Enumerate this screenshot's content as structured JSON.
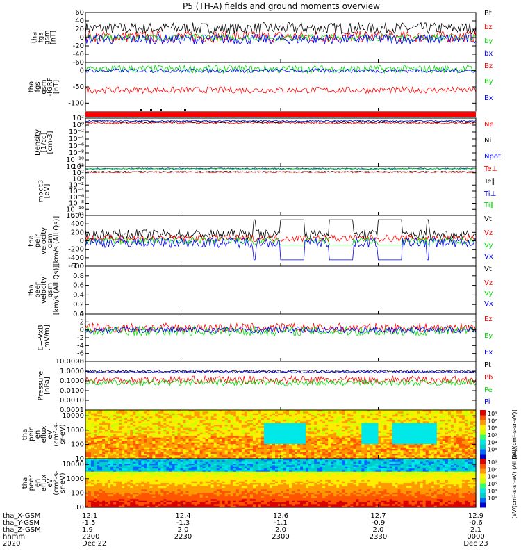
{
  "title": "P5 (TH-A) fields and ground moments overview",
  "colors": {
    "black": "#000000",
    "red": "#ff0000",
    "green": "#00dd00",
    "blue": "#0000ff",
    "spec_low": "#0000cc",
    "spec_mid": "#00e8e8",
    "spec_high": "#ff8800",
    "spec_max": "#cc0000"
  },
  "chart_data": [
    {
      "type": "line",
      "ylabel": [
        "tha",
        "fgs",
        "gsm",
        "[nT]"
      ],
      "ylim": [
        -60,
        60
      ],
      "ticks": [
        "60",
        "40",
        "20",
        "0",
        "-20",
        "-40",
        "-60"
      ],
      "tick_values": [
        60,
        40,
        20,
        0,
        -20,
        -40,
        -60
      ],
      "series": [
        {
          "name": "Bt",
          "color": "#000000",
          "base": 22,
          "amp": 14
        },
        {
          "name": "bz",
          "color": "#ff0000",
          "base": 2,
          "amp": 14
        },
        {
          "name": "by",
          "color": "#00dd00",
          "base": 0,
          "amp": 8
        },
        {
          "name": "bx",
          "color": "#0000ff",
          "base": -4,
          "amp": 12
        }
      ]
    },
    {
      "type": "line",
      "ylabel": [
        "tha",
        "fgs",
        "gsm",
        "-IGRF",
        "[nT]"
      ],
      "ylim": [
        -125,
        25
      ],
      "ticks": [
        "0",
        "-50",
        "-100"
      ],
      "tick_values": [
        0,
        -50,
        -100
      ],
      "series": [
        {
          "name": "Bz",
          "color": "#ff0000",
          "base": -60,
          "amp": 10
        },
        {
          "name": "By",
          "color": "#00dd00",
          "base": 5,
          "amp": 12
        },
        {
          "name": "Bx",
          "color": "#0000ff",
          "base": 0,
          "amp": 6
        }
      ]
    },
    {
      "type": "line",
      "log": true,
      "ylabel": [
        "Density",
        "[1/cc]",
        "[cm-3]"
      ],
      "ylim": [
        -12,
        2
      ],
      "ticks": [
        "10²",
        "10⁰",
        "10⁻²",
        "10⁻⁴",
        "10⁻⁶",
        "10⁻⁸",
        "10⁻¹⁰",
        "10⁻¹²"
      ],
      "tick_values": [
        2,
        0,
        -2,
        -4,
        -6,
        -8,
        -10,
        -12
      ],
      "series": [
        {
          "name": "Ne",
          "color": "#ff0000",
          "base": 0.6,
          "amp": 0.3
        },
        {
          "name": "Ni",
          "color": "#000000",
          "base": 0.9,
          "amp": 0.25
        },
        {
          "name": "Npot",
          "color": "#0000ff",
          "base": 1.2,
          "amp": 0.2
        }
      ]
    },
    {
      "type": "line",
      "log": true,
      "ylabel": [
        "moqt3",
        "[eV]"
      ],
      "ylim": [
        -12,
        4
      ],
      "ticks": [
        "10⁴",
        "10²",
        "10⁰",
        "10⁻²",
        "10⁻⁴",
        "10⁻⁶",
        "10⁻⁸",
        "10⁻¹⁰",
        "10⁻¹²"
      ],
      "tick_values": [
        4,
        2,
        0,
        -2,
        -4,
        -6,
        -8,
        -10,
        -12
      ],
      "series": [
        {
          "name": "Te⊥",
          "color": "#ff0000",
          "base": 2.2,
          "amp": 0.2
        },
        {
          "name": "Te∥",
          "color": "#000000",
          "base": 2.35,
          "amp": 0.15
        },
        {
          "name": "Ti⊥",
          "color": "#0000ff",
          "base": 3.4,
          "amp": 0.2
        },
        {
          "name": "Ti∥",
          "color": "#00dd00",
          "base": 3.3,
          "amp": 0.2
        }
      ]
    },
    {
      "type": "line",
      "ylabel": [
        "tha",
        "peir",
        "velocity",
        "gsm",
        "[km/s (All Qs)]"
      ],
      "ylim": [
        -600,
        600
      ],
      "ticks": [
        "600",
        "400",
        "200",
        "0",
        "-200",
        "-400",
        "-600"
      ],
      "tick_values": [
        600,
        400,
        200,
        0,
        -200,
        -400,
        -600
      ],
      "series": [
        {
          "name": "Vt",
          "color": "#000000",
          "base": 150,
          "amp": 120
        },
        {
          "name": "Vz",
          "color": "#ff0000",
          "base": 60,
          "amp": 80
        },
        {
          "name": "Vy",
          "color": "#00dd00",
          "base": 0,
          "amp": 80
        },
        {
          "name": "Vx",
          "color": "#0000ff",
          "base": -40,
          "amp": 120
        }
      ]
    },
    {
      "type": "line",
      "empty": true,
      "ylabel": [
        "tha",
        "peer",
        "velocity",
        "gsm",
        "[km/s (All Qs)]"
      ],
      "ylim": [
        0,
        1
      ],
      "ticks": [
        "1.0",
        "0.8",
        "0.6",
        "0.4",
        "0.2",
        "0.0"
      ],
      "tick_values": [
        1.0,
        0.8,
        0.6,
        0.4,
        0.2,
        0.0
      ],
      "series": [
        {
          "name": "Vt",
          "color": "#000000"
        },
        {
          "name": "Vz",
          "color": "#ff0000"
        },
        {
          "name": "Vy",
          "color": "#00dd00"
        },
        {
          "name": "Vx",
          "color": "#0000ff"
        }
      ]
    },
    {
      "type": "line",
      "ylabel": [
        "E=-VxB",
        "[mV/m]"
      ],
      "ylim": [
        -8,
        4
      ],
      "ticks": [
        "4",
        "2",
        "0",
        "-2",
        "-4",
        "-6",
        "-8"
      ],
      "tick_values": [
        4,
        2,
        0,
        -2,
        -4,
        -6,
        -8
      ],
      "series": [
        {
          "name": "Ez",
          "color": "#ff0000",
          "base": 0.5,
          "amp": 1.2
        },
        {
          "name": "Ey",
          "color": "#00dd00",
          "base": -0.3,
          "amp": 1.2
        },
        {
          "name": "Ex",
          "color": "#0000ff",
          "base": 0,
          "amp": 0.8
        }
      ]
    },
    {
      "type": "line",
      "log": true,
      "ylabel": [
        "Pressure",
        "[nPa]"
      ],
      "ylim": [
        -4,
        1
      ],
      "ticks": [
        "10.0000",
        "1.0000",
        "0.1000",
        "0.0100",
        "0.0010",
        "0.0001"
      ],
      "tick_values": [
        1,
        0,
        -1,
        -2,
        -3,
        -4
      ],
      "series": [
        {
          "name": "Pt",
          "color": "#000000",
          "base": 0.0,
          "amp": 0.12
        },
        {
          "name": "Pb",
          "color": "#ff0000",
          "base": -0.9,
          "amp": 0.4
        },
        {
          "name": "Pe",
          "color": "#00dd00",
          "base": -1.2,
          "amp": 0.3
        },
        {
          "name": "Pi",
          "color": "#0000ff",
          "base": -0.1,
          "amp": 0.1
        }
      ]
    },
    {
      "type": "heatmap",
      "ylabel": [
        "tha",
        "peir",
        "en",
        "eflux",
        "eV",
        "(cm²-s-",
        "sr-eV)"
      ],
      "ylim": [
        1,
        4.4
      ],
      "ticks": [
        "10000",
        "1000",
        "100",
        "10"
      ],
      "tick_values": [
        4,
        3,
        2,
        1
      ]
    },
    {
      "type": "heatmap",
      "ylabel": [
        "tha",
        "peer",
        "en",
        "eflux",
        "eV",
        "(cm²-s-",
        "sr-eV)"
      ],
      "ylim": [
        1,
        4.4
      ],
      "ticks": [
        "10000",
        "1000",
        "100",
        "10"
      ],
      "tick_values": [
        4,
        3,
        2,
        1
      ]
    }
  ],
  "colorbars": [
    {
      "ticks": [
        "10⁸",
        "10⁷",
        "10⁶",
        "10⁵",
        "10⁴",
        "10³"
      ],
      "label": "[eV/(cm²-s-sr-eV)]"
    },
    {
      "ticks": [
        "10⁸",
        "10⁷",
        "10⁶",
        "10⁵",
        "10⁴",
        "10³"
      ],
      "label": "[eV/(cm²-s-sr-eV) (All Qs)]"
    }
  ],
  "x_axis": {
    "row_labels": [
      "tha_X-GSM",
      "tha_Y-GSM",
      "tha_Z-GSM",
      "hhmm",
      "2020"
    ],
    "columns": [
      {
        "values": [
          "12.1",
          "-1.5",
          "1.9",
          "2200",
          "Dec 22"
        ]
      },
      {
        "values": [
          "12.4",
          "-1.3",
          "2.0",
          "2230",
          ""
        ]
      },
      {
        "values": [
          "12.6",
          "-1.1",
          "2.0",
          "2300",
          ""
        ]
      },
      {
        "values": [
          "12.7",
          "-0.9",
          "2.0",
          "2330",
          ""
        ]
      },
      {
        "values": [
          "12.9",
          "-0.6",
          "2.1",
          "0000",
          "Dec 23"
        ]
      }
    ]
  }
}
